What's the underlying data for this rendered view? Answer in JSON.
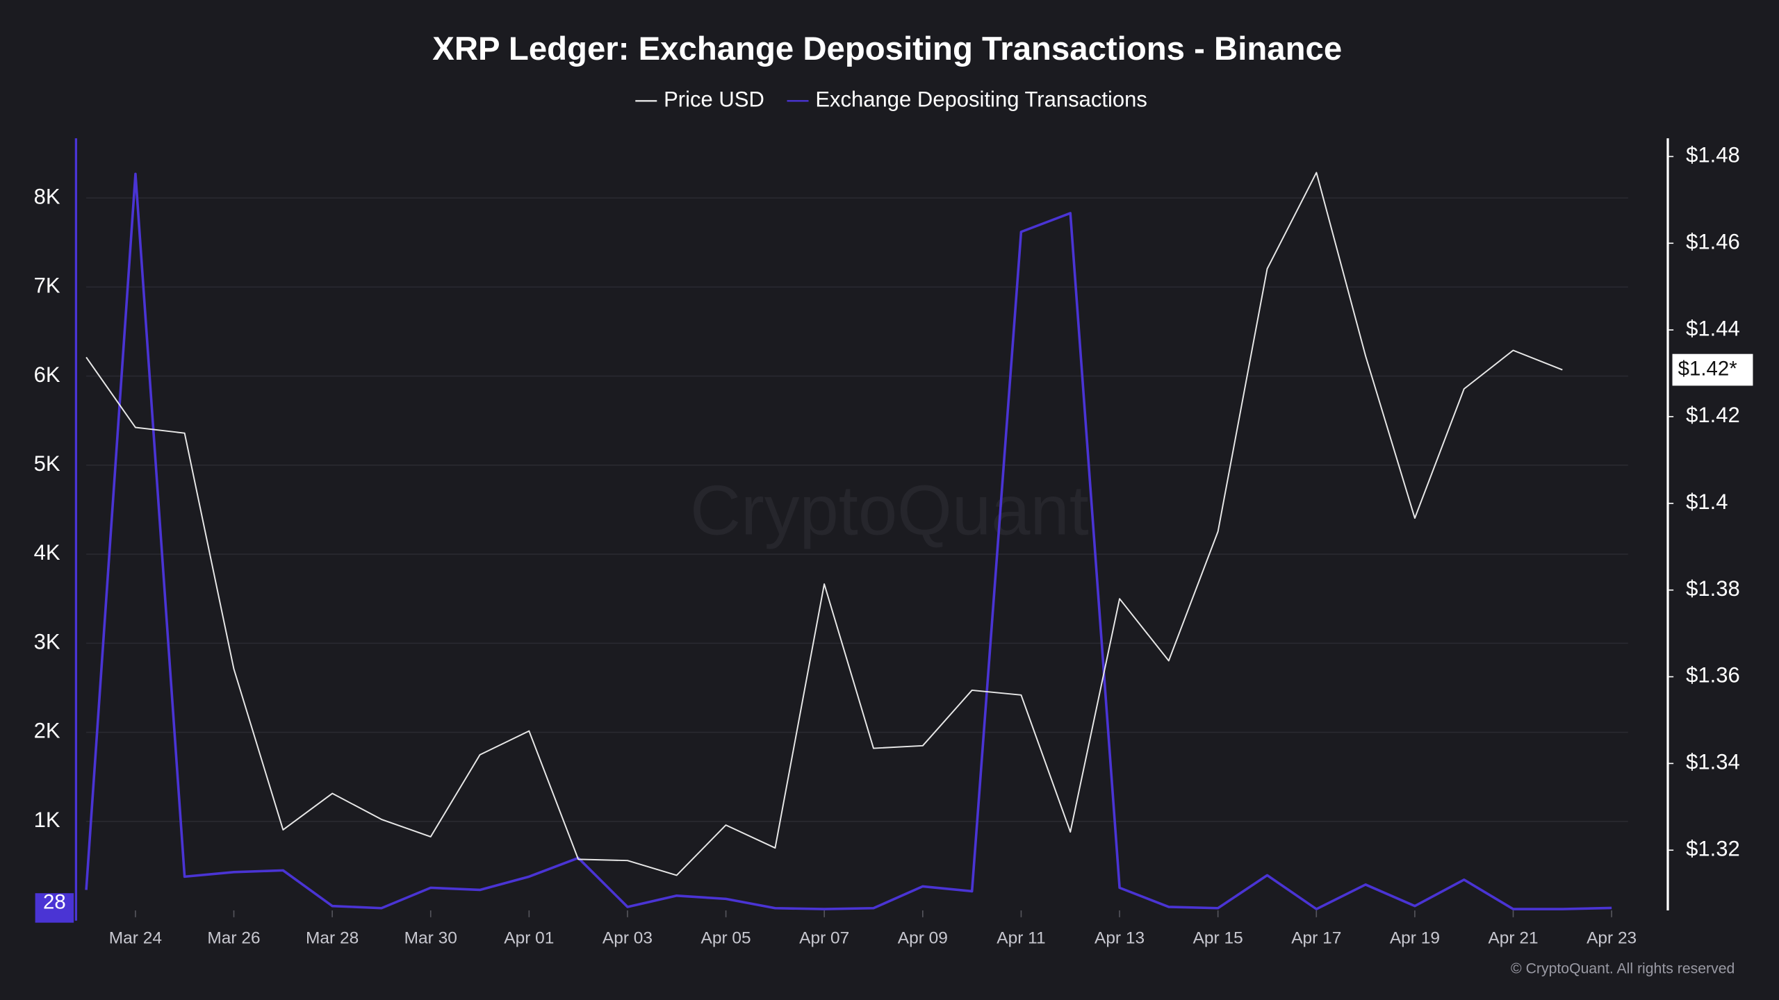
{
  "chart_data": {
    "type": "line",
    "title": "XRP Ledger: Exchange Depositing Transactions - Binance",
    "categories": [
      null,
      "Mar 24",
      null,
      "Mar 26",
      null,
      "Mar 28",
      null,
      "Mar 30",
      null,
      "Apr 01",
      null,
      "Apr 03",
      null,
      "Apr 05",
      null,
      "Apr 07",
      null,
      "Apr 09",
      null,
      "Apr 11",
      null,
      "Apr 13",
      null,
      "Apr 15",
      null,
      "Apr 17",
      null,
      "Apr 19",
      null,
      "Apr 21",
      null,
      "Apr 23"
    ],
    "series": [
      {
        "name": "Price USD",
        "color": "#e8e8e8",
        "axis": "y2",
        "values": [
          1.4337,
          1.4175,
          1.4162,
          1.3618,
          1.3247,
          1.3331,
          1.3271,
          1.3231,
          1.342,
          1.3475,
          1.3179,
          1.3176,
          1.3142,
          1.3258,
          1.3205,
          1.3814,
          1.3435,
          1.3441,
          1.3569,
          1.3558,
          1.3242,
          1.378,
          1.3637,
          1.3935,
          1.4541,
          1.4763,
          1.434,
          1.3966,
          1.4264,
          1.4353,
          1.4308,
          null
        ]
      },
      {
        "name": "Exchange Depositing Transactions",
        "color": "#4a34d4",
        "values": [
          230,
          8270,
          380,
          430,
          450,
          50,
          25,
          255,
          230,
          380,
          590,
          40,
          165,
          130,
          25,
          15,
          25,
          270,
          215,
          7620,
          7830,
          255,
          40,
          25,
          395,
          15,
          290,
          50,
          345,
          15,
          15,
          28
        ]
      }
    ],
    "ylim": [
      0,
      8670
    ],
    "yticks": [
      {
        "value": 1000,
        "label": "1K"
      },
      {
        "value": 2000,
        "label": "2K"
      },
      {
        "value": 3000,
        "label": "3K"
      },
      {
        "value": 4000,
        "label": "4K"
      },
      {
        "value": 5000,
        "label": "5K"
      },
      {
        "value": 6000,
        "label": "6K"
      },
      {
        "value": 7000,
        "label": "7K"
      },
      {
        "value": 8000,
        "label": "8K"
      }
    ],
    "y2lim": [
      1.3061,
      1.4842
    ],
    "y2ticks": [
      {
        "value": 1.32,
        "label": "$1.32"
      },
      {
        "value": 1.34,
        "label": "$1.34"
      },
      {
        "value": 1.36,
        "label": "$1.36"
      },
      {
        "value": 1.38,
        "label": "$1.38"
      },
      {
        "value": 1.4,
        "label": "$1.4"
      },
      {
        "value": 1.42,
        "label": "$1.42"
      },
      {
        "value": 1.44,
        "label": "$1.44"
      },
      {
        "value": 1.46,
        "label": "$1.46"
      },
      {
        "value": 1.48,
        "label": "$1.48"
      }
    ],
    "grid": true,
    "left_marker": "28",
    "right_marker": "$1.42*",
    "watermark": "CryptoQuant",
    "copyright": "© CryptoQuant. All rights reserved"
  }
}
